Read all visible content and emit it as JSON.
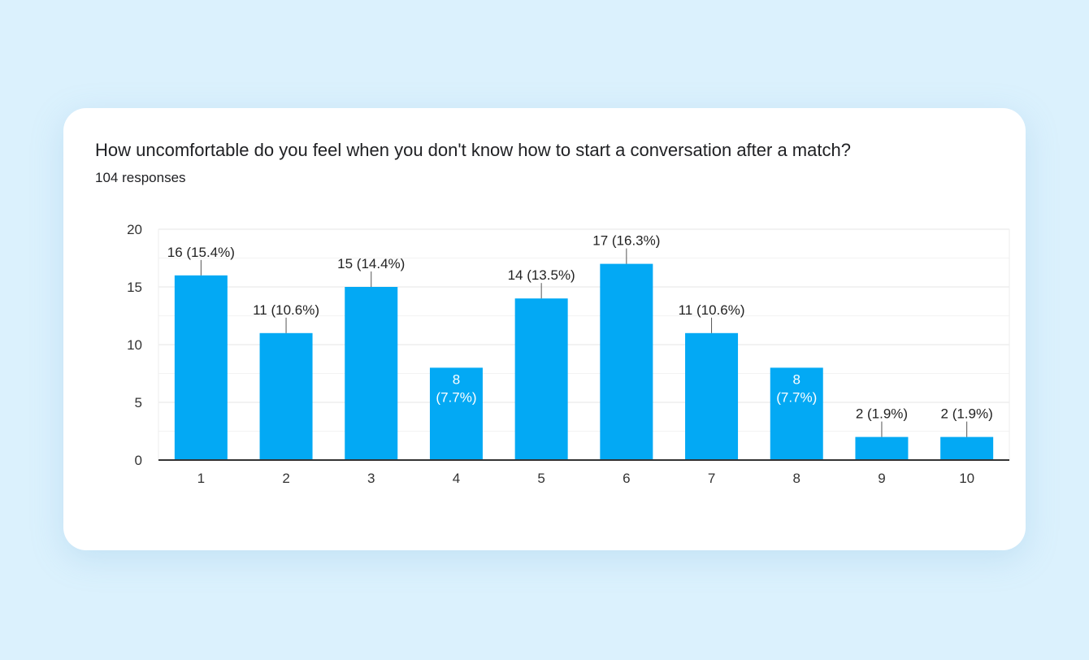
{
  "chart_data": {
    "type": "bar",
    "title": "How uncomfortable do you feel when you don't know how to start a conversation after a match?",
    "subtitle": "104 responses",
    "categories": [
      "1",
      "2",
      "3",
      "4",
      "5",
      "6",
      "7",
      "8",
      "9",
      "10"
    ],
    "values": [
      16,
      11,
      15,
      8,
      14,
      17,
      11,
      8,
      2,
      2
    ],
    "data_labels": [
      "16 (15.4%)",
      "11 (10.6%)",
      "15 (14.4%)",
      "8 (7.7%)",
      "14 (13.5%)",
      "17 (16.3%)",
      "11 (10.6%)",
      "8 (7.7%)",
      "2 (1.9%)",
      "2 (1.9%)"
    ],
    "yticks": [
      0,
      5,
      10,
      15,
      20
    ],
    "ylim": [
      0,
      20
    ],
    "grid": true,
    "bar_color": "#03a9f4"
  }
}
